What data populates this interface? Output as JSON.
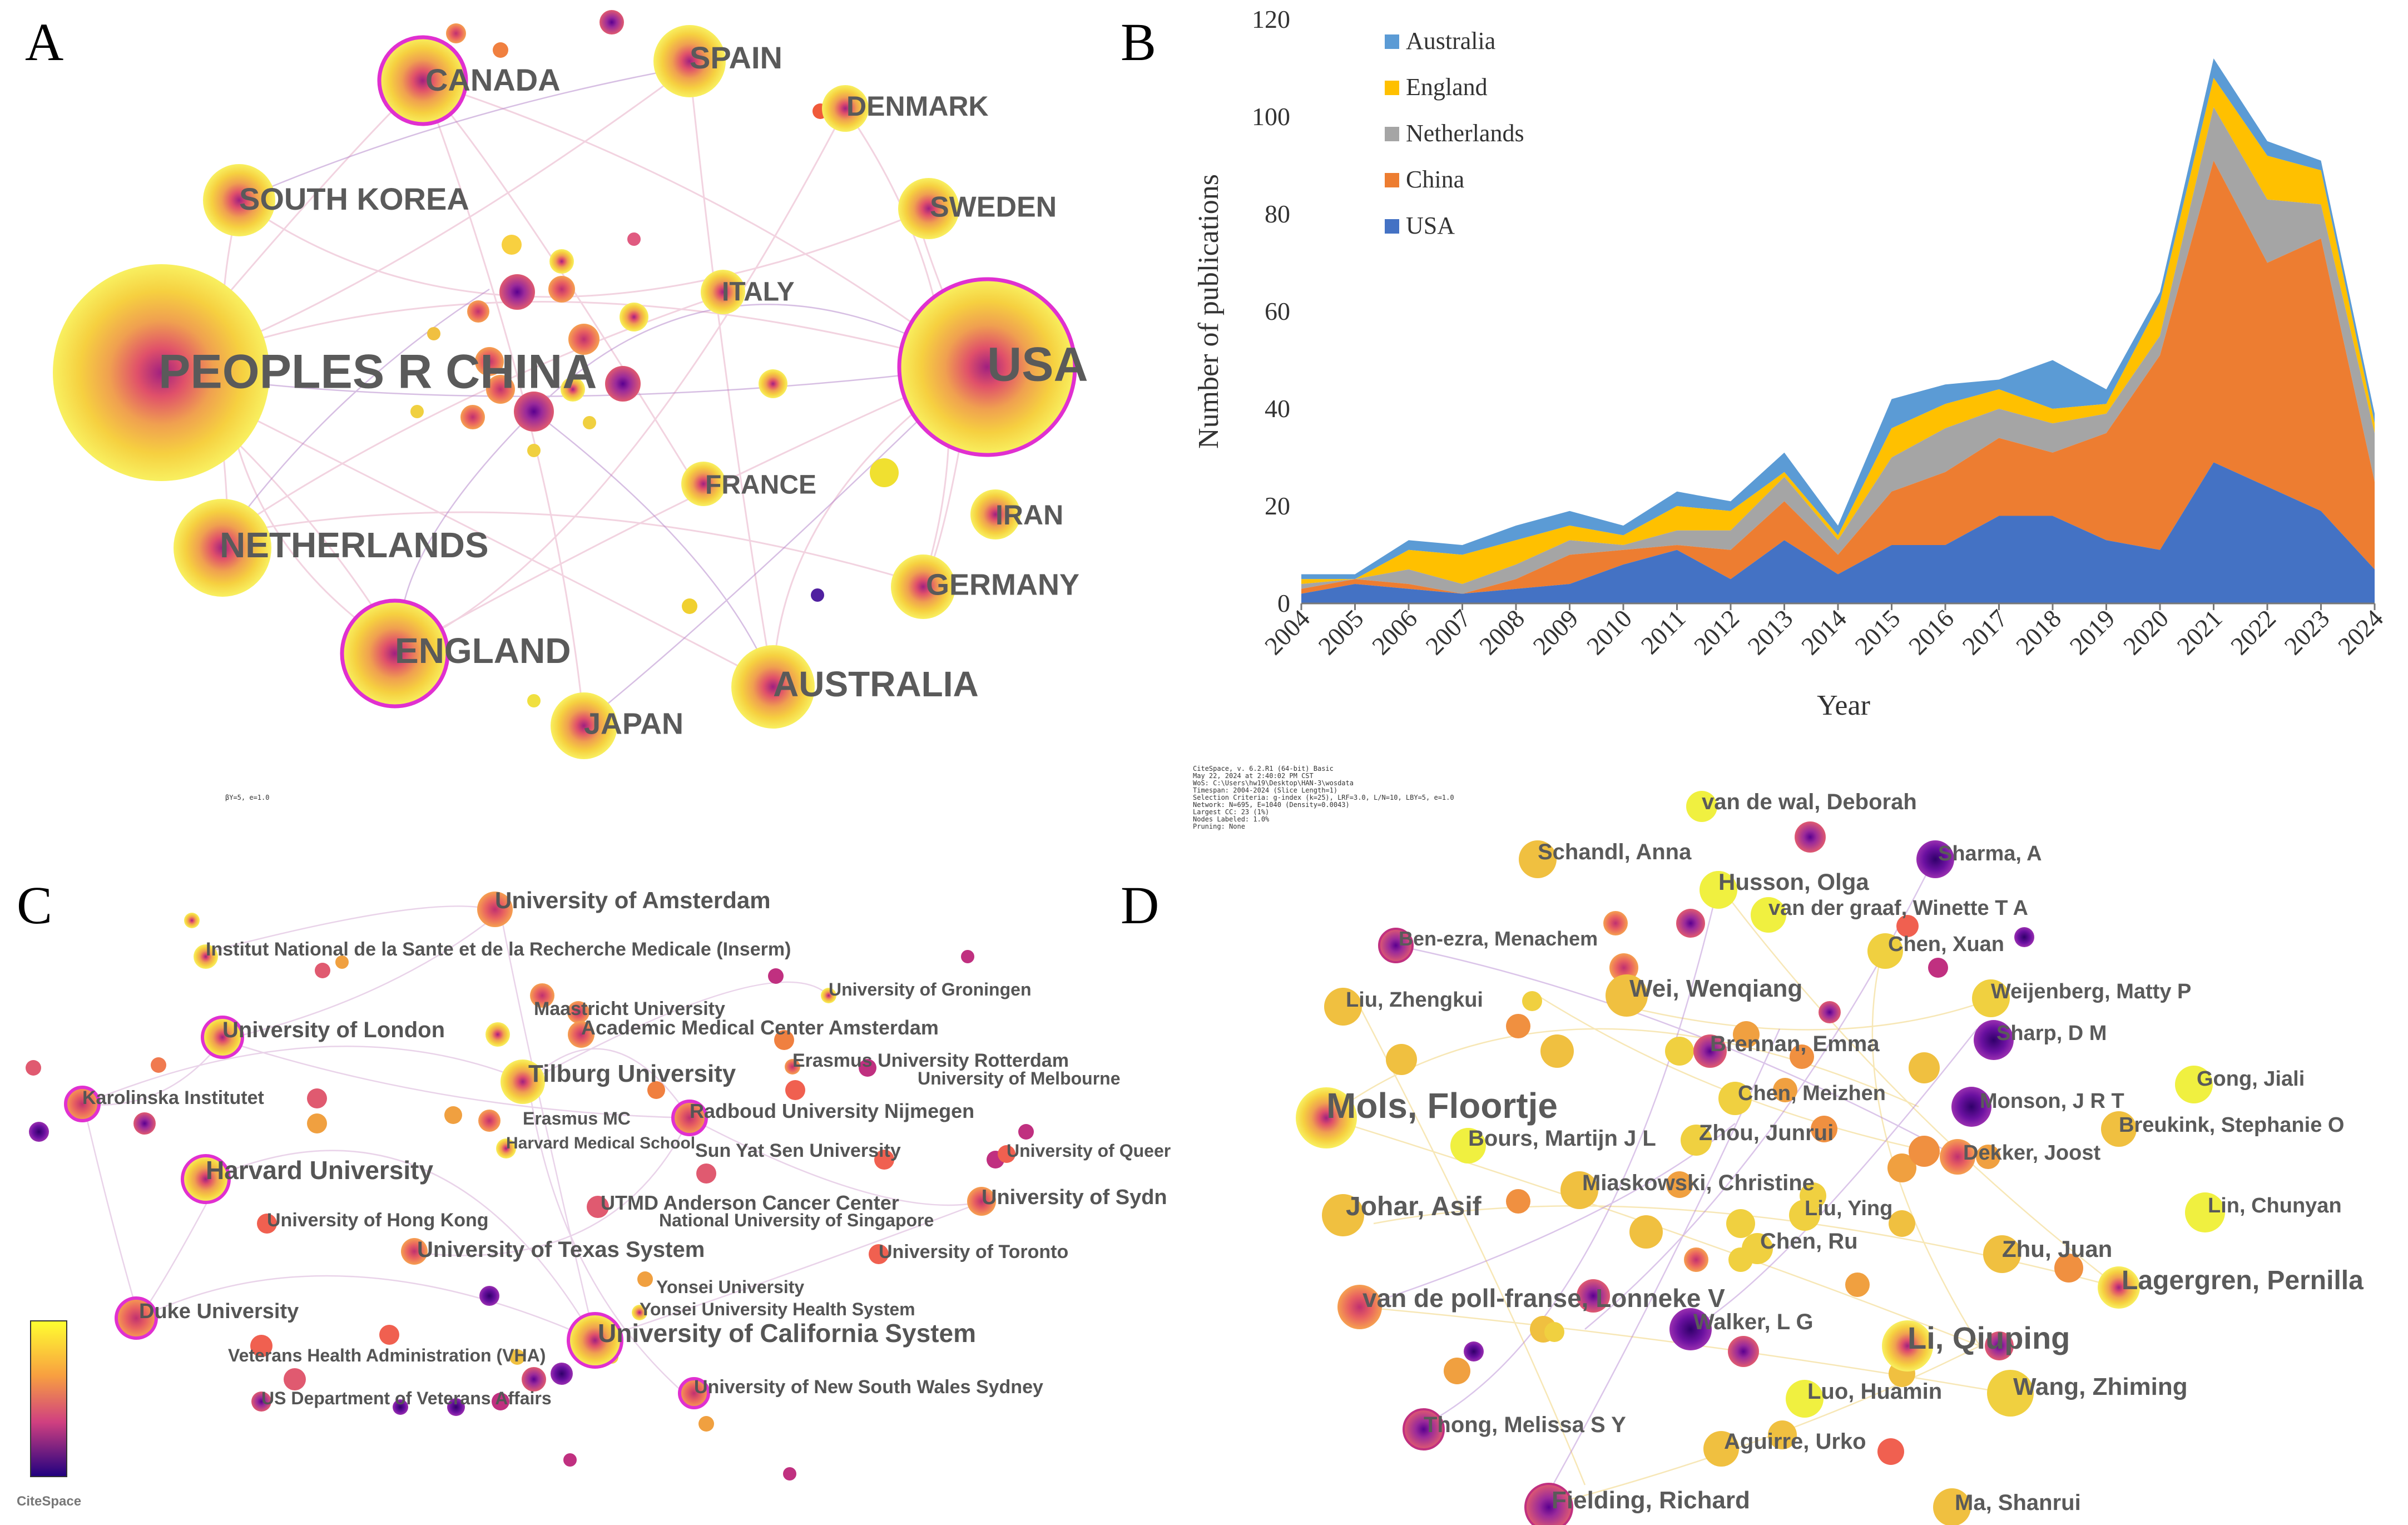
{
  "panels": {
    "a": "A",
    "b": "B",
    "c": "C",
    "d": "D"
  },
  "colors": {
    "usa": "#4472C4",
    "china": "#ED7D31",
    "netherlands": "#A5A5A5",
    "england": "#FFC000",
    "australia": "#5B9BD5"
  },
  "panel_a": {
    "countries": [
      "PEOPLES R CHINA",
      "USA",
      "CANADA",
      "SPAIN",
      "DENMARK",
      "SOUTH KOREA",
      "SWEDEN",
      "ITALY",
      "FRANCE",
      "IRAN",
      "NETHERLANDS",
      "GERMANY",
      "ENGLAND",
      "AUSTRALIA",
      "JAPAN"
    ],
    "footnote": "βY=5, e=1.0"
  },
  "panel_b_meta": [
    "CiteSpace, v. 6.2.R1 (64-bit) Basic",
    "May 22, 2024 at 2:40:02 PM CST",
    "WoS: C:\\Users\\hw19\\Desktop\\HAN-3\\wosdata",
    "Timespan: 2004-2024 (Slice Length=1)",
    "Selection Criteria: g-index (k=25), LRF=3.0, L/N=10, LBY=5, e=1.0",
    "Network: N=695, E=1040 (Density=0.0043)",
    "Largest CC: 23 (1%)",
    "Nodes Labeled: 1.0%",
    "Pruning: None"
  ],
  "panel_c": {
    "institutions": [
      "University of Amsterdam",
      "Institut National de la Sante et de la Recherche Medicale (Inserm)",
      "University of Groningen",
      "Maastricht University",
      "University of London",
      "Academic Medical Center Amsterdam",
      "Erasmus University Rotterdam",
      "Tilburg University",
      "University of Melbourne",
      "Karolinska Institutet",
      "Erasmus MC",
      "Radboud University Nijmegen",
      "Harvard Medical School",
      "Sun Yat Sen University",
      "University of Queer",
      "Harvard University",
      "UTMD Anderson Cancer Center",
      "University of Sydn",
      "University of Hong Kong",
      "National University of Singapore",
      "University of Texas System",
      "University of Toronto",
      "Yonsei University",
      "Yonsei University Health System",
      "Duke University",
      "University of California System",
      "Veterans Health Administration (VHA)",
      "US Department of Veterans Affairs",
      "University of New South Wales Sydney"
    ],
    "logo": "CiteSpace"
  },
  "panel_d": {
    "authors": [
      "van de wal, Deborah",
      "Schandl, Anna",
      "Sharma, A",
      "Husson, Olga",
      "van der graaf, Winette T A",
      "Ben-ezra, Menachem",
      "Chen, Xuan",
      "Liu, Zhengkui",
      "Wei, Wenqiang",
      "Weijenberg, Matty P",
      "Brennan, Emma",
      "Sharp, D M",
      "Gong, Jiali",
      "Mols, Floortje",
      "Chen, Meizhen",
      "Monson, J R T",
      "Breukink, Stephanie O",
      "Bours, Martijn J L",
      "Zhou, Junrui",
      "Dekker, Joost",
      "Johar, Asif",
      "Miaskowski, Christine",
      "Liu, Ying",
      "Lin, Chunyan",
      "Chen, Ru",
      "Zhu, Juan",
      "Lagergren, Pernilla",
      "van de poll-franse, Lonneke V",
      "Walker, L G",
      "Li, Qiuping",
      "Luo, Huamin",
      "Wang, Zhiming",
      "Thong, Melissa S Y",
      "Aguirre, Urko",
      "Fielding, Richard",
      "Ma, Shanrui"
    ]
  },
  "chart_data": [
    {
      "type": "network",
      "panel": "A",
      "title": "",
      "nodes": [
        "PEOPLES R CHINA",
        "USA",
        "CANADA",
        "SPAIN",
        "DENMARK",
        "SOUTH KOREA",
        "SWEDEN",
        "ITALY",
        "FRANCE",
        "IRAN",
        "NETHERLANDS",
        "GERMANY",
        "ENGLAND",
        "AUSTRALIA",
        "JAPAN"
      ]
    },
    {
      "type": "area",
      "panel": "B",
      "stacked": true,
      "title": "",
      "xlabel": "Year",
      "ylabel": "Number of publications",
      "ylim": [
        0,
        120
      ],
      "yticks": [
        0,
        20,
        40,
        60,
        80,
        100,
        120
      ],
      "categories": [
        "2004",
        "2005",
        "2006",
        "2007",
        "2008",
        "2009",
        "2010",
        "2011",
        "2012",
        "2013",
        "2014",
        "2015",
        "2016",
        "2017",
        "2018",
        "2019",
        "2020",
        "2021",
        "2022",
        "2023",
        "2024"
      ],
      "legend": [
        "Australia",
        "England",
        "Netherlands",
        "China",
        "USA"
      ],
      "legend_position": "top-left",
      "series": [
        {
          "name": "USA",
          "values": [
            2,
            4,
            3,
            2,
            3,
            4,
            8,
            11,
            5,
            13,
            6,
            12,
            12,
            18,
            18,
            13,
            11,
            29,
            24,
            19,
            7
          ]
        },
        {
          "name": "China",
          "values": [
            1,
            1,
            1,
            0,
            2,
            6,
            3,
            1,
            6,
            8,
            4,
            11,
            15,
            16,
            13,
            22,
            40,
            62,
            46,
            56,
            18
          ]
        },
        {
          "name": "Netherlands",
          "values": [
            1,
            0,
            3,
            2,
            3,
            3,
            1,
            3,
            4,
            5,
            3,
            7,
            9,
            6,
            6,
            4,
            4,
            11,
            13,
            7,
            10
          ]
        },
        {
          "name": "England",
          "values": [
            1,
            0,
            4,
            6,
            5,
            3,
            2,
            5,
            4,
            1,
            1,
            6,
            5,
            4,
            3,
            2,
            7,
            6,
            9,
            7,
            2
          ]
        },
        {
          "name": "Australia",
          "values": [
            1,
            1,
            2,
            2,
            3,
            3,
            2,
            3,
            2,
            4,
            2,
            6,
            4,
            2,
            10,
            3,
            2,
            4,
            3,
            2,
            2
          ]
        }
      ]
    },
    {
      "type": "network",
      "panel": "C",
      "title": ""
    },
    {
      "type": "network",
      "panel": "D",
      "title": ""
    }
  ]
}
